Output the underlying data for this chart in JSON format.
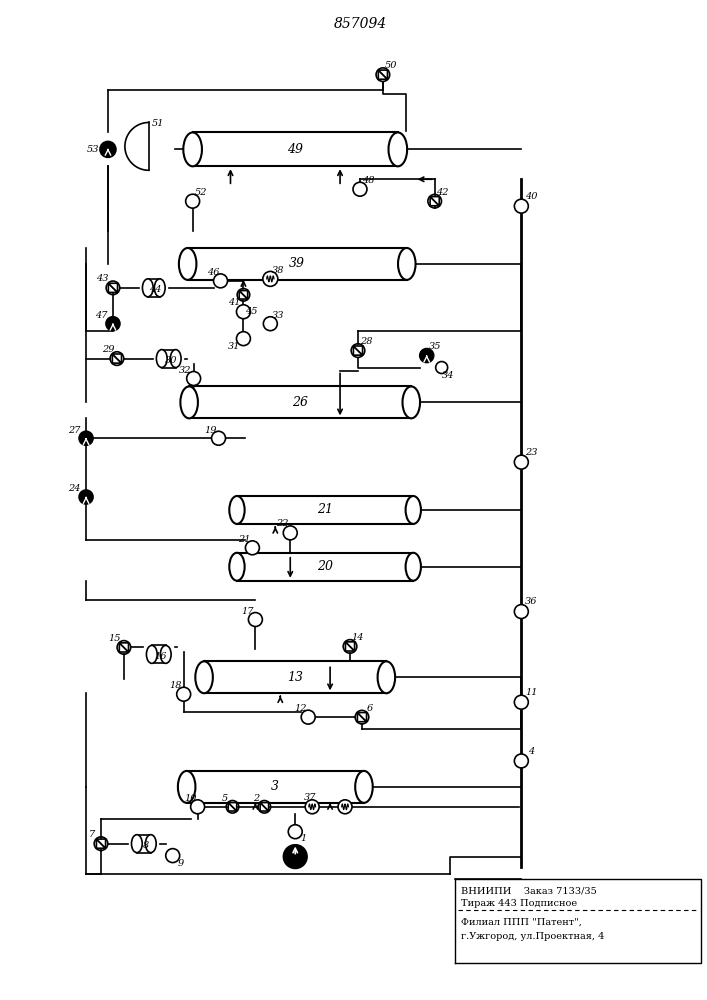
{
  "title": "857094",
  "patent_text": [
    "ВНИИПИ    Заказ 7133/35",
    "Тираж 443 Подписное",
    "Филиал ППП \"Патент\",",
    "г.Ужгород, ул.Проектная, 4"
  ],
  "bg_color": "#ffffff",
  "line_color": "#000000",
  "line_width": 1.5,
  "fig_width": 7.07,
  "fig_height": 10.0
}
